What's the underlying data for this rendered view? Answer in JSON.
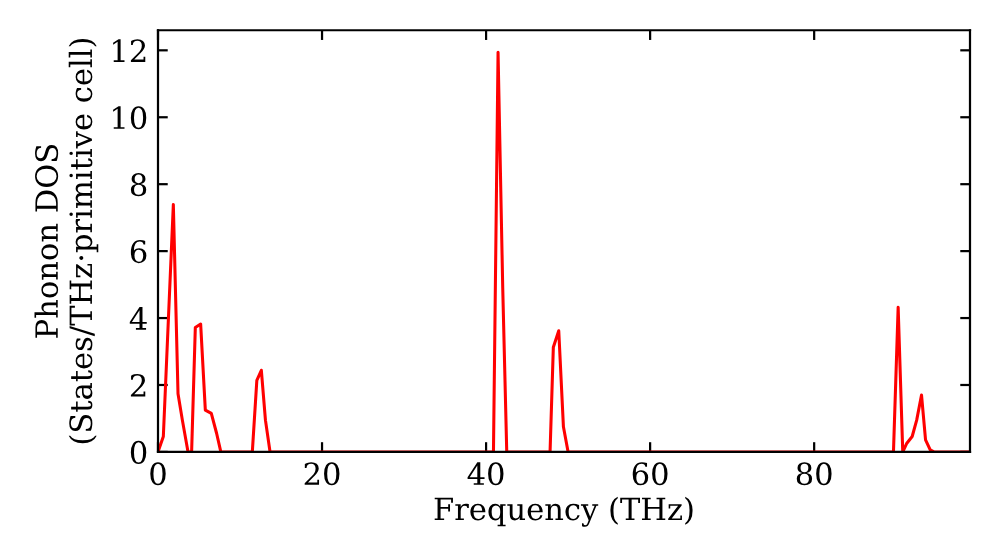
{
  "chart_data": {
    "type": "line",
    "xlabel": "Frequency (THz)",
    "ylabel": "Phonon DOS\n(States/THz·primitive cell)",
    "series": [
      {
        "color": "#ff0000",
        "x": [
          0,
          0.65,
          1.87,
          2.44,
          2.97,
          3.66,
          4.1,
          4.55,
          5.2,
          5.77,
          6.5,
          7.15,
          7.66,
          11.5,
          12.05,
          12.6,
          13.1,
          13.66,
          40.9,
          41.46,
          42.03,
          42.52,
          47.8,
          48.2,
          48.86,
          49.43,
          50.0,
          89.67,
          90.24,
          90.8,
          91.3,
          91.95,
          92.5,
          93.09,
          93.58,
          94.15,
          94.6,
          99
        ],
        "values": [
          0,
          0.46,
          7.39,
          1.74,
          0.95,
          0,
          0,
          3.72,
          3.82,
          1.25,
          1.15,
          0.55,
          0,
          0,
          2.14,
          2.44,
          0.95,
          0,
          0,
          11.94,
          4.9,
          0,
          0,
          3.13,
          3.62,
          0.75,
          0,
          0,
          4.32,
          0,
          0.26,
          0.46,
          0.95,
          1.7,
          0.36,
          0.06,
          0,
          0
        ]
      }
    ],
    "xlim": [
      0,
      99
    ],
    "ylim": [
      0,
      12.6
    ],
    "xticks": [
      0,
      20,
      40,
      60,
      80
    ],
    "yticks": [
      0,
      2,
      4,
      6,
      8,
      10,
      12
    ],
    "grid": false,
    "legend": false
  }
}
